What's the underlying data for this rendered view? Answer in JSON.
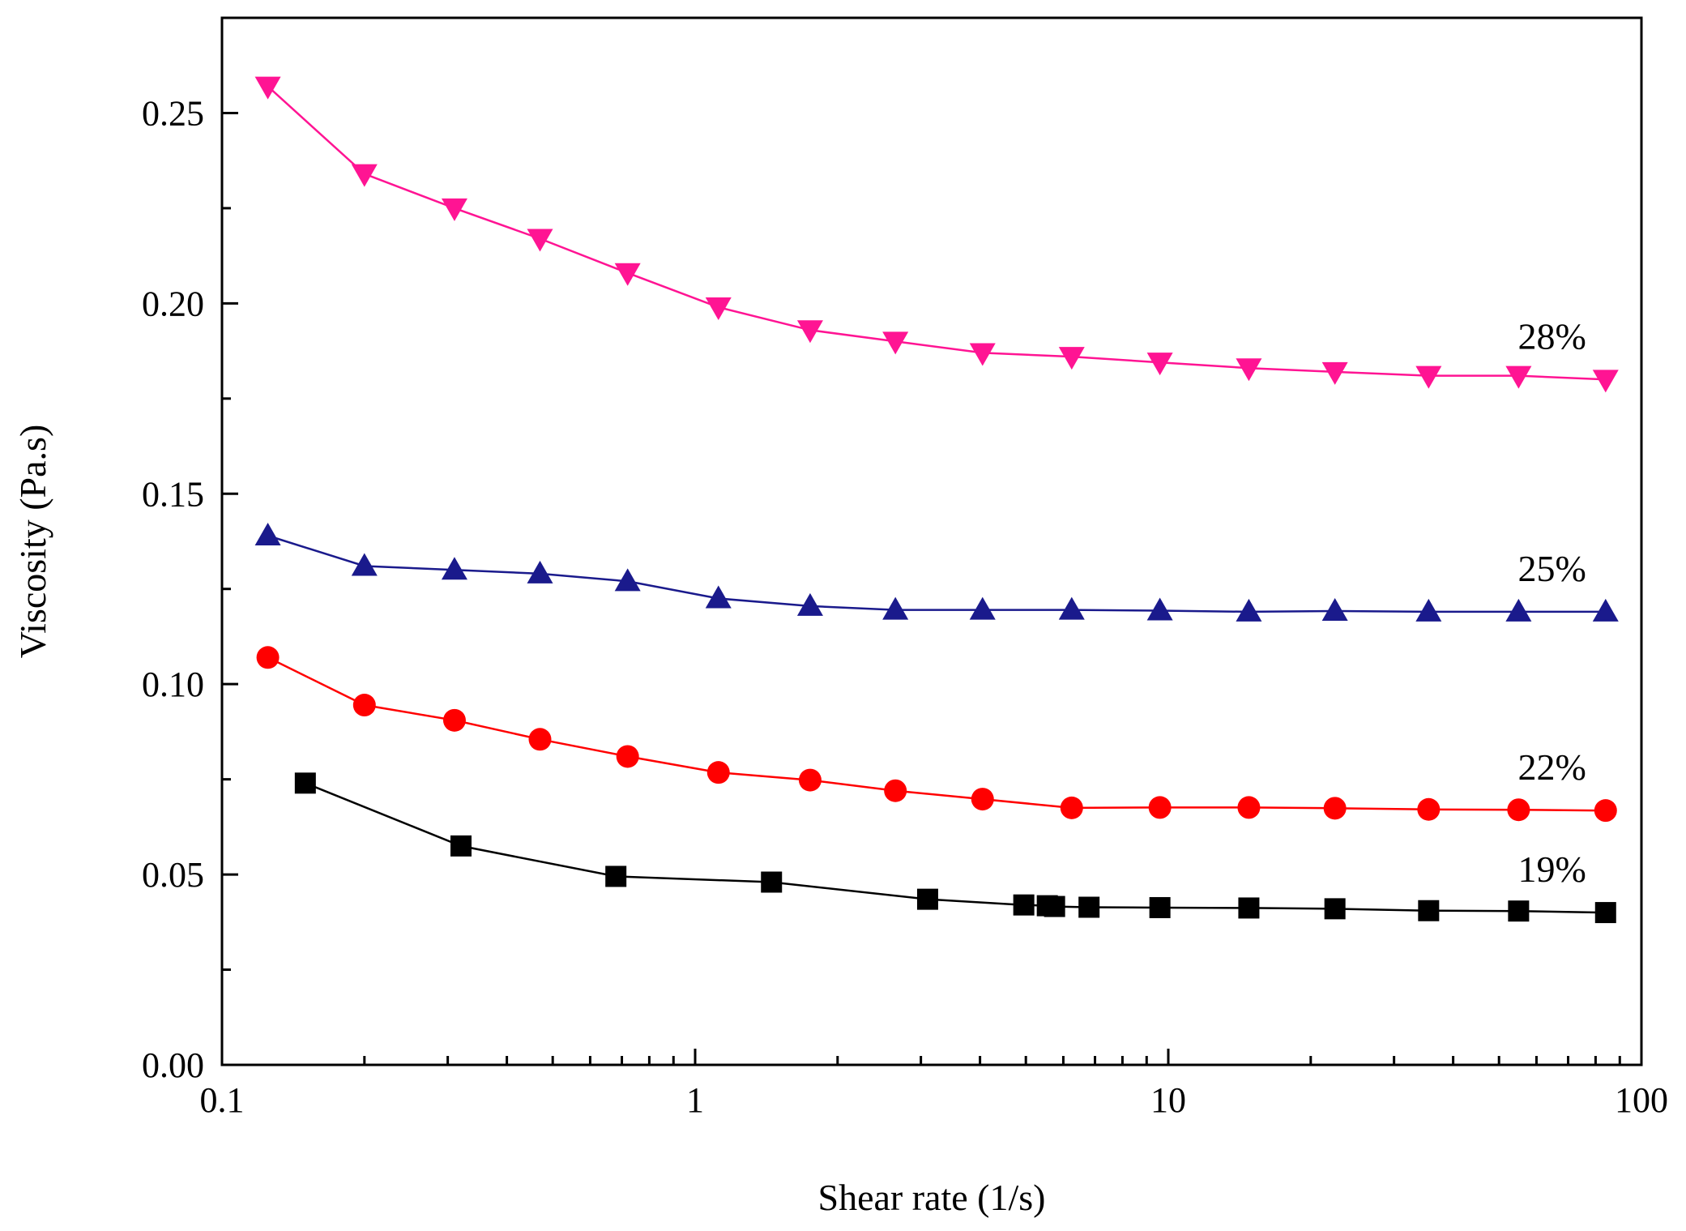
{
  "chart_data": {
    "type": "line",
    "title": "",
    "xlabel": "Shear rate (1/s)",
    "ylabel": "Viscosity (Pa.s)",
    "xscale": "log",
    "xlim": [
      0.1,
      100
    ],
    "ylim": [
      0.0,
      0.275
    ],
    "xticks": [
      {
        "value": 0.1,
        "label": "0.1"
      },
      {
        "value": 1,
        "label": "1"
      },
      {
        "value": 10,
        "label": "10"
      },
      {
        "value": 100,
        "label": "100"
      }
    ],
    "yticks": [
      {
        "value": 0.0,
        "label": "0.00"
      },
      {
        "value": 0.05,
        "label": "0.05"
      },
      {
        "value": 0.1,
        "label": "0.10"
      },
      {
        "value": 0.15,
        "label": "0.15"
      },
      {
        "value": 0.2,
        "label": "0.20"
      },
      {
        "value": 0.25,
        "label": "0.25"
      }
    ],
    "grid": false,
    "series": [
      {
        "name": "19%",
        "color": "#000000",
        "marker": "square",
        "x": [
          0.15,
          0.32,
          0.68,
          1.45,
          3.1,
          4.95,
          5.55,
          5.75,
          6.8,
          9.6,
          14.8,
          22.5,
          35.5,
          55.0,
          84.0
        ],
        "y": [
          0.074,
          0.0575,
          0.0495,
          0.048,
          0.0435,
          0.042,
          0.0418,
          0.0416,
          0.0414,
          0.0413,
          0.0412,
          0.041,
          0.0405,
          0.0404,
          0.04
        ]
      },
      {
        "name": "22%",
        "color": "#ff0000",
        "marker": "circle",
        "x": [
          0.125,
          0.2,
          0.31,
          0.47,
          0.72,
          1.12,
          1.75,
          2.65,
          4.05,
          6.25,
          9.6,
          14.8,
          22.5,
          35.5,
          55.0,
          84.0
        ],
        "y": [
          0.107,
          0.0945,
          0.0905,
          0.0855,
          0.081,
          0.0768,
          0.0748,
          0.072,
          0.0698,
          0.0675,
          0.0676,
          0.0676,
          0.0674,
          0.0671,
          0.067,
          0.0668
        ]
      },
      {
        "name": "25%",
        "color": "#1a1a8c",
        "marker": "triangle-up",
        "x": [
          0.125,
          0.2,
          0.31,
          0.47,
          0.72,
          1.12,
          1.75,
          2.65,
          4.05,
          6.25,
          9.6,
          14.8,
          22.5,
          35.5,
          55.0,
          84.0
        ],
        "y": [
          0.139,
          0.131,
          0.13,
          0.129,
          0.127,
          0.1225,
          0.1205,
          0.1195,
          0.1195,
          0.1195,
          0.1193,
          0.119,
          0.1192,
          0.119,
          0.119,
          0.119
        ]
      },
      {
        "name": "28%",
        "color": "#ff1493",
        "marker": "triangle-down",
        "x": [
          0.125,
          0.2,
          0.31,
          0.47,
          0.72,
          1.12,
          1.75,
          2.65,
          4.05,
          6.25,
          9.6,
          14.8,
          22.5,
          35.5,
          55.0,
          84.0
        ],
        "y": [
          0.257,
          0.234,
          0.225,
          0.217,
          0.208,
          0.199,
          0.193,
          0.19,
          0.187,
          0.186,
          0.1845,
          0.183,
          0.182,
          0.181,
          0.181,
          0.18
        ]
      }
    ]
  }
}
